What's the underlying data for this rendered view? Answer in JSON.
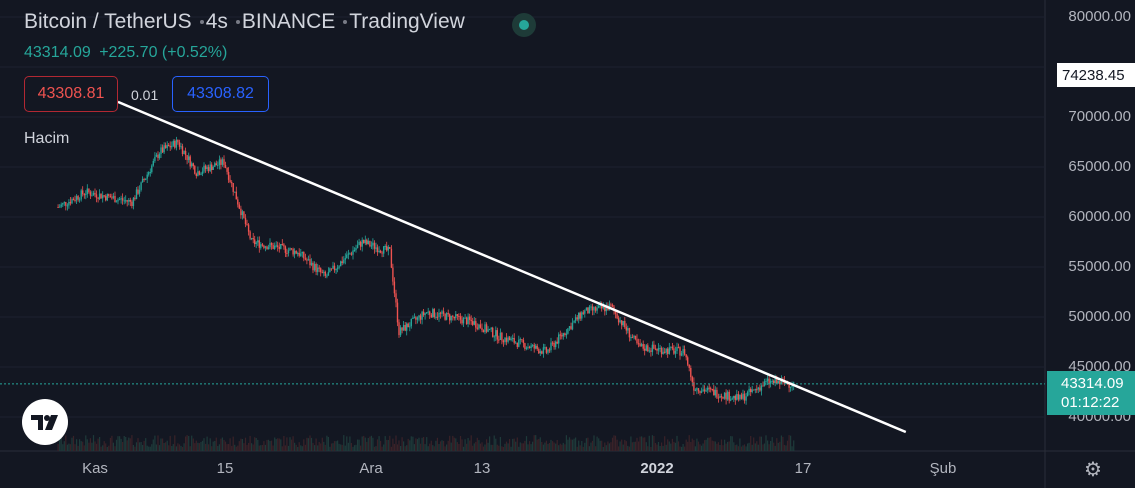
{
  "header": {
    "symbol": "Bitcoin / TetherUS",
    "interval": "4s",
    "exchange": "BINANCE",
    "source": "TradingView"
  },
  "quote": {
    "last": "43314.09",
    "change": "+225.70 (+0.52%)"
  },
  "trade": {
    "sell_price": "43308.81",
    "spread": "0.01",
    "buy_price": "43308.82"
  },
  "indicator_label": "Hacim",
  "price_axis": {
    "ticks": [
      "80000.00",
      "70000.00",
      "65000.00",
      "60000.00",
      "55000.00",
      "50000.00",
      "45000.00",
      "40000.00"
    ],
    "high_label": "74238.45",
    "current_price": "43314.09",
    "countdown": "01:12:22"
  },
  "time_axis": {
    "labels": [
      "Kas",
      "15",
      "Ara",
      "13",
      "2022",
      "17",
      "Şub"
    ],
    "bold_label": "2022"
  },
  "icons": {
    "live": "live-status-icon",
    "logo": "tradingview-logo-icon",
    "settings": "gear-icon"
  },
  "colors": {
    "background": "#131722",
    "up": "#26a69a",
    "down": "#ef5350",
    "trendline": "#ffffff",
    "buy_border": "#2962ff",
    "sell_border": "#b22833"
  },
  "chart_data": {
    "type": "candlestick",
    "ylim": [
      38000,
      81000
    ],
    "anchors": [
      {
        "date": "2021-10-28",
        "price": 61000
      },
      {
        "date": "2021-10-31",
        "price": 62500
      },
      {
        "date": "2021-11-05",
        "price": 61500
      },
      {
        "date": "2021-11-08",
        "price": 66500
      },
      {
        "date": "2021-11-10",
        "price": 67500
      },
      {
        "date": "2021-11-12",
        "price": 64500
      },
      {
        "date": "2021-11-15",
        "price": 65500
      },
      {
        "date": "2021-11-18",
        "price": 57500
      },
      {
        "date": "2021-11-23",
        "price": 56500
      },
      {
        "date": "2021-11-26",
        "price": 54000
      },
      {
        "date": "2021-11-30",
        "price": 57500
      },
      {
        "date": "2021-12-03",
        "price": 56500
      },
      {
        "date": "2021-12-04",
        "price": 48500
      },
      {
        "date": "2021-12-07",
        "price": 50500
      },
      {
        "date": "2021-12-12",
        "price": 49500
      },
      {
        "date": "2021-12-15",
        "price": 48000
      },
      {
        "date": "2021-12-20",
        "price": 46500
      },
      {
        "date": "2021-12-24",
        "price": 50500
      },
      {
        "date": "2021-12-27",
        "price": 51000
      },
      {
        "date": "2021-12-30",
        "price": 47000
      },
      {
        "date": "2022-01-04",
        "price": 46500
      },
      {
        "date": "2022-01-05",
        "price": 43000
      },
      {
        "date": "2022-01-10",
        "price": 41800
      },
      {
        "date": "2022-01-13",
        "price": 43500
      },
      {
        "date": "2022-01-16",
        "price": 43300
      }
    ],
    "trendline": [
      {
        "date": "2021-11-10",
        "price": 69000
      },
      {
        "date": "2022-01-28",
        "price": 38500
      }
    ]
  }
}
